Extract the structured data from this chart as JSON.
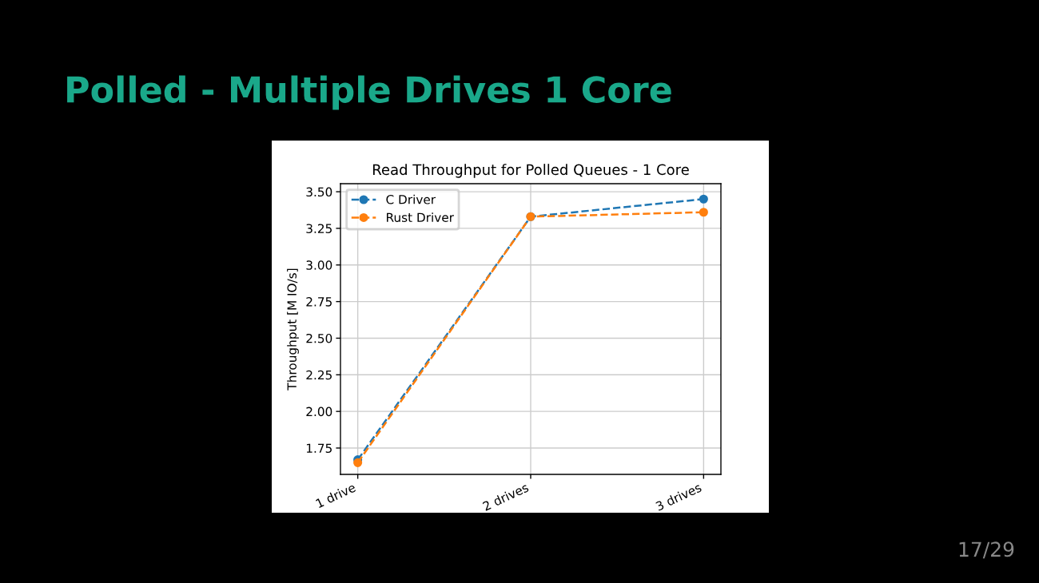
{
  "chart_data": {
    "type": "line",
    "title": "Read Throughput for Polled Queues - 1 Core",
    "ylabel": "Throughput [M IO/s]",
    "categories": [
      "1 drive",
      "2 drives",
      "3 drives"
    ],
    "series": [
      {
        "name": "C Driver",
        "color": "#1f77b4",
        "values": [
          1.67,
          3.33,
          3.45
        ]
      },
      {
        "name": "Rust Driver",
        "color": "#ff7f0e",
        "values": [
          1.65,
          3.33,
          3.36
        ]
      }
    ],
    "ylim": [
      1.57,
      3.555
    ],
    "yticks": [
      1.75,
      {
        "value": 2,
        "label": "2.00"
      },
      2.25,
      {
        "value": 2.5,
        "label": "2.50"
      },
      2.75,
      {
        "value": 3,
        "label": "3.00"
      },
      3.25,
      {
        "value": 3.5,
        "label": "3.50"
      }
    ],
    "grid": true,
    "legend": "top left",
    "marker": "circle",
    "line_style": "dashed",
    "annotations": [
      "Polled - Multiple Drives 1 Core",
      "17/29"
    ]
  }
}
